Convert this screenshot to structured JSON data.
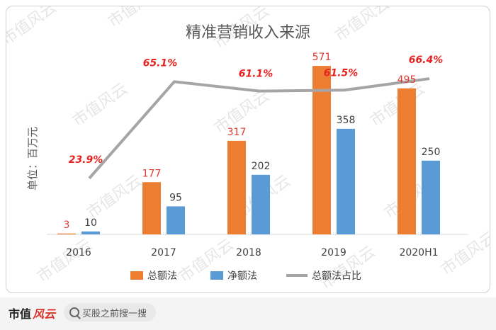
{
  "chart_data": {
    "type": "bar",
    "title": "精准营销收入来源",
    "ylabel": "单位：百万元",
    "categories": [
      "2016",
      "2017",
      "2018",
      "2019",
      "2020H1"
    ],
    "series": [
      {
        "name": "总额法",
        "type": "bar",
        "values": [
          3,
          177,
          317,
          571,
          495
        ],
        "color": "#ed7d31"
      },
      {
        "name": "净额法",
        "type": "bar",
        "values": [
          10,
          95,
          202,
          358,
          250
        ],
        "color": "#5b9bd5"
      },
      {
        "name": "总额法占比",
        "type": "line",
        "values": [
          23.9,
          65.1,
          61.1,
          61.5,
          66.4
        ],
        "labels": [
          "23.9%",
          "65.1%",
          "61.1%",
          "61.5%",
          "66.4%"
        ],
        "color": "#a5a5a5"
      }
    ],
    "ylim": [
      0,
      600
    ],
    "y2lim": [
      0,
      80
    ],
    "grid": false,
    "legend_position": "bottom"
  },
  "watermark": "市值风云",
  "footer": {
    "brand_text": "市值",
    "brand_script": "风云",
    "search_placeholder": "买股之前搜一搜"
  }
}
